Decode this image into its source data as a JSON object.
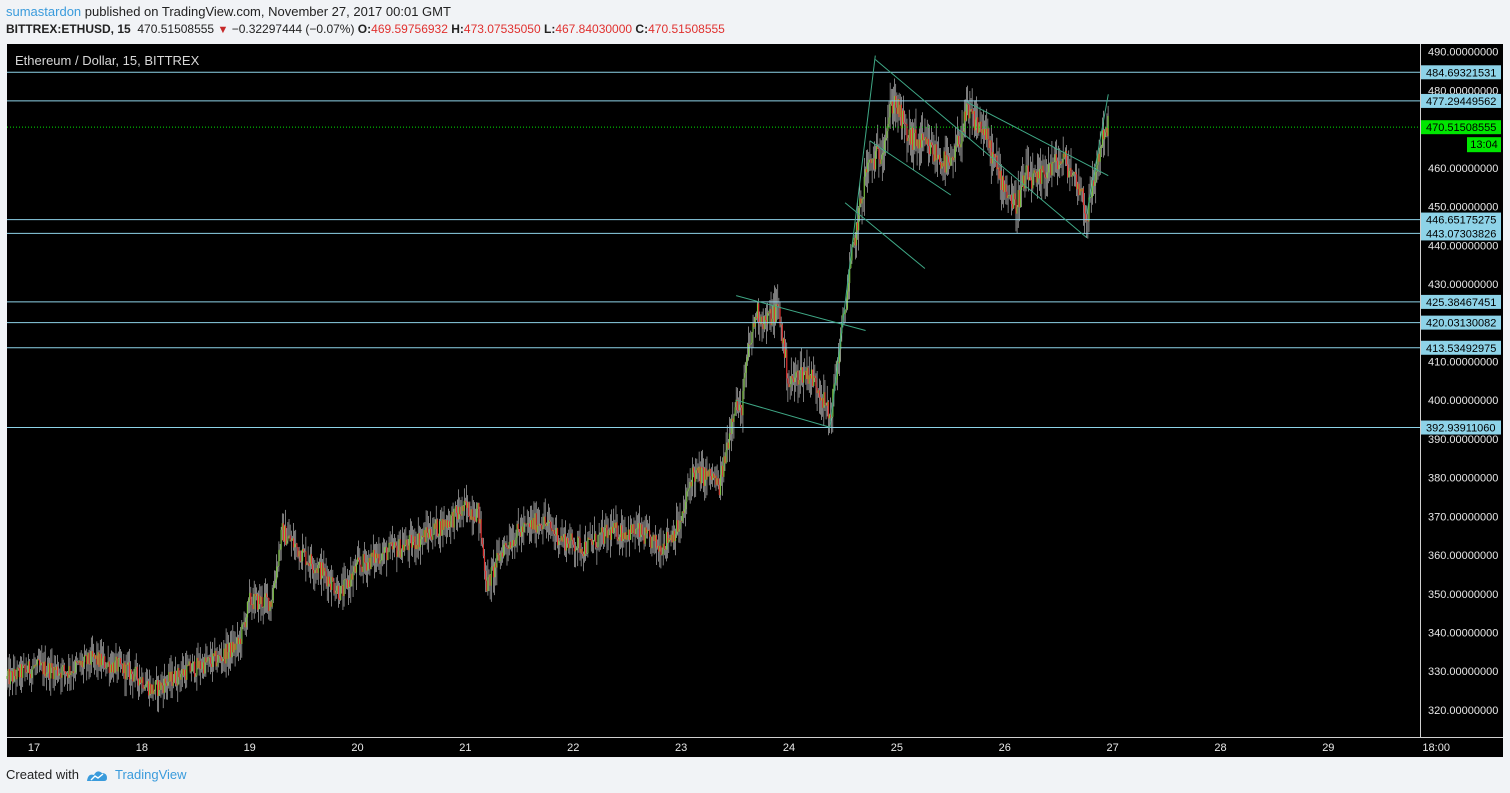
{
  "header": {
    "author": "sumastardon",
    "published": "published on TradingView.com, November 27, 2017 00:01 GMT",
    "symbol": "BITTREX:ETHUSD, 15",
    "last": "470.51508555",
    "change": "−0.32297444 (−0.07%)",
    "o_label": "O:",
    "o": "469.59756932",
    "h_label": "H:",
    "h": "473.07535050",
    "l_label": "L:",
    "l": "467.84030000",
    "c_label": "C:",
    "c": "470.51508555"
  },
  "footer": {
    "created_with": "Created with",
    "brand": "TradingView"
  },
  "colors": {
    "bg": "#000000",
    "up": "#7bc043",
    "down": "#e0312f",
    "wick": "#cfcfcf",
    "hline": "#8ed3e8",
    "trend": "#3fa886",
    "current": "#00e600"
  },
  "chart_data": {
    "type": "candlestick",
    "title": "Ethereum / Dollar, 15, BITTREX",
    "x_ticks": [
      "17",
      "18",
      "19",
      "20",
      "21",
      "22",
      "23",
      "24",
      "25",
      "26",
      "27",
      "28",
      "29",
      "18:00"
    ],
    "y_ticks": [
      "320.00000000",
      "330.00000000",
      "340.00000000",
      "350.00000000",
      "360.00000000",
      "370.00000000",
      "380.00000000",
      "390.00000000",
      "400.00000000",
      "410.00000000",
      "420.00000000",
      "430.00000000",
      "440.00000000",
      "450.00000000",
      "460.00000000",
      "470.00000000",
      "480.00000000",
      "490.00000000"
    ],
    "ylim": [
      313,
      492
    ],
    "x_range_days": [
      16.75,
      29.85
    ],
    "grid": false,
    "horizontal_levels": [
      {
        "value": 484.69321531,
        "label": "484.69321531"
      },
      {
        "value": 477.29449562,
        "label": "477.29449562"
      },
      {
        "value": 446.65175275,
        "label": "446.65175275"
      },
      {
        "value": 443.07303826,
        "label": "443.07303826"
      },
      {
        "value": 425.38467451,
        "label": "425.38467451"
      },
      {
        "value": 420.03130082,
        "label": "420.03130082"
      },
      {
        "value": 413.53492975,
        "label": "413.53492975"
      },
      {
        "value": 392.9391106,
        "label": "392.93911060"
      }
    ],
    "current_price": {
      "value": 470.51508555,
      "label": "470.51508555",
      "countdown": "13:04"
    },
    "trendlines": [
      {
        "x1": 23.51,
        "y1": 427.0,
        "x2": 24.71,
        "y2": 418.0
      },
      {
        "x1": 23.51,
        "y1": 400.0,
        "x2": 24.38,
        "y2": 393.0
      },
      {
        "x1": 24.38,
        "y1": 393.0,
        "x2": 24.8,
        "y2": 489.0
      },
      {
        "x1": 24.52,
        "y1": 451.0,
        "x2": 25.26,
        "y2": 434.0
      },
      {
        "x1": 24.75,
        "y1": 467.0,
        "x2": 25.5,
        "y2": 453.0
      },
      {
        "x1": 24.8,
        "y1": 488.0,
        "x2": 26.76,
        "y2": 442.0
      },
      {
        "x1": 25.65,
        "y1": 477.0,
        "x2": 26.96,
        "y2": 458.0
      },
      {
        "x1": 26.76,
        "y1": 448.0,
        "x2": 26.96,
        "y2": 479.0
      }
    ],
    "price_path": [
      [
        16.75,
        328
      ],
      [
        17.0,
        331
      ],
      [
        17.3,
        330
      ],
      [
        17.55,
        333
      ],
      [
        17.8,
        331
      ],
      [
        18.0,
        328
      ],
      [
        18.1,
        325
      ],
      [
        18.4,
        330
      ],
      [
        18.7,
        333
      ],
      [
        18.9,
        337
      ],
      [
        19.0,
        348
      ],
      [
        19.2,
        348
      ],
      [
        19.3,
        366
      ],
      [
        19.5,
        360
      ],
      [
        19.7,
        355
      ],
      [
        19.85,
        350
      ],
      [
        20.0,
        357
      ],
      [
        20.2,
        360
      ],
      [
        20.5,
        363
      ],
      [
        20.8,
        368
      ],
      [
        21.0,
        372
      ],
      [
        21.12,
        371
      ],
      [
        21.2,
        352
      ],
      [
        21.35,
        362
      ],
      [
        21.5,
        366
      ],
      [
        21.7,
        369
      ],
      [
        21.9,
        364
      ],
      [
        22.1,
        362
      ],
      [
        22.35,
        366
      ],
      [
        22.6,
        366
      ],
      [
        22.8,
        362
      ],
      [
        23.0,
        368
      ],
      [
        23.1,
        381
      ],
      [
        23.3,
        380
      ],
      [
        23.35,
        377
      ],
      [
        23.4,
        384
      ],
      [
        23.45,
        392
      ],
      [
        23.5,
        400
      ],
      [
        23.55,
        396
      ],
      [
        23.62,
        412
      ],
      [
        23.7,
        423
      ],
      [
        23.78,
        420
      ],
      [
        23.9,
        424
      ],
      [
        24.0,
        404
      ],
      [
        24.1,
        407
      ],
      [
        24.18,
        407
      ],
      [
        24.28,
        403
      ],
      [
        24.38,
        395
      ],
      [
        24.5,
        420
      ],
      [
        24.6,
        440
      ],
      [
        24.72,
        460
      ],
      [
        24.85,
        464
      ],
      [
        24.97,
        478
      ],
      [
        25.1,
        468
      ],
      [
        25.3,
        465
      ],
      [
        25.5,
        460
      ],
      [
        25.65,
        474
      ],
      [
        25.8,
        470
      ],
      [
        25.95,
        458
      ],
      [
        26.1,
        450
      ],
      [
        26.2,
        458
      ],
      [
        26.3,
        456
      ],
      [
        26.4,
        460
      ],
      [
        26.55,
        462
      ],
      [
        26.7,
        455
      ],
      [
        26.76,
        447
      ],
      [
        26.85,
        460
      ],
      [
        26.92,
        470
      ],
      [
        26.96,
        470.5
      ]
    ]
  }
}
